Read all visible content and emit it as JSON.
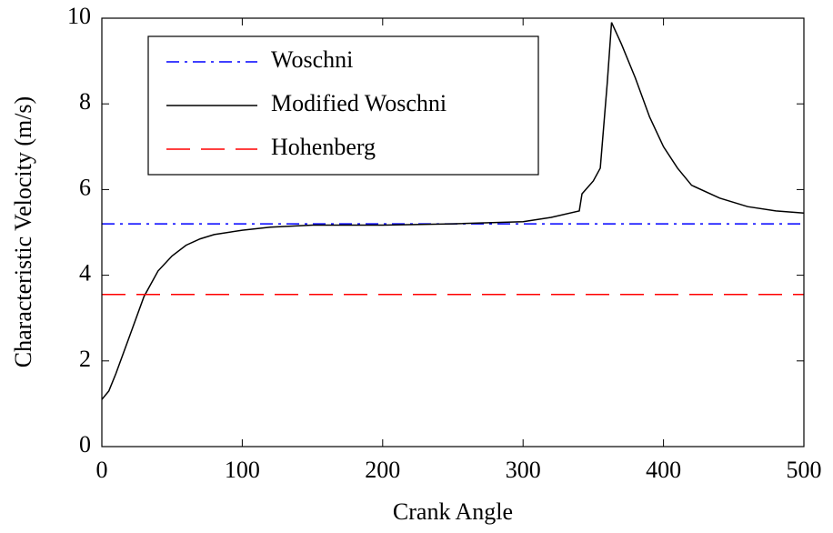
{
  "chart_data": {
    "type": "line",
    "x_label": "Crank Angle",
    "y_label": "Characteristic Velocity (m/s)",
    "xlim": [
      0,
      500
    ],
    "ylim": [
      0,
      10
    ],
    "xticks": [
      0,
      100,
      200,
      300,
      400,
      500
    ],
    "yticks": [
      0,
      2,
      4,
      6,
      8,
      10
    ],
    "legend": "upper-left",
    "series": [
      {
        "name": "Woschni",
        "color": "#0000ff",
        "dash": "dashdot",
        "x": [
          0,
          500
        ],
        "values": [
          5.2,
          5.2
        ]
      },
      {
        "name": "Modified Woschni",
        "color": "#000000",
        "dash": "solid",
        "x": [
          0,
          5,
          10,
          20,
          30,
          40,
          50,
          60,
          70,
          80,
          100,
          120,
          150,
          200,
          250,
          300,
          320,
          340,
          342,
          350,
          355,
          360,
          363,
          370,
          380,
          390,
          400,
          410,
          420,
          440,
          460,
          480,
          500
        ],
        "values": [
          1.1,
          1.3,
          1.7,
          2.6,
          3.5,
          4.1,
          4.45,
          4.7,
          4.85,
          4.95,
          5.05,
          5.12,
          5.17,
          5.17,
          5.2,
          5.25,
          5.35,
          5.5,
          5.9,
          6.2,
          6.5,
          8.5,
          9.9,
          9.4,
          8.6,
          7.7,
          7.0,
          6.5,
          6.1,
          5.8,
          5.6,
          5.5,
          5.45
        ]
      },
      {
        "name": "Hohenberg",
        "color": "#ff0000",
        "dash": "dashed",
        "x": [
          0,
          500
        ],
        "values": [
          3.55,
          3.55
        ]
      }
    ]
  }
}
